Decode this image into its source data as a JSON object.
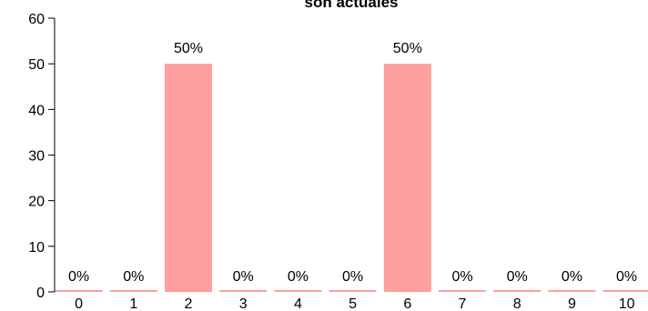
{
  "chart_data": {
    "type": "bar",
    "title": "son actuales",
    "xlabel": "",
    "ylabel": "",
    "categories": [
      "0",
      "1",
      "2",
      "3",
      "4",
      "5",
      "6",
      "7",
      "8",
      "9",
      "10"
    ],
    "values": [
      0,
      0,
      50,
      0,
      0,
      0,
      50,
      0,
      0,
      0,
      0
    ],
    "data_labels": [
      "0%",
      "0%",
      "50%",
      "0%",
      "0%",
      "0%",
      "50%",
      "0%",
      "0%",
      "0%",
      "0%"
    ],
    "ylim": [
      0,
      60
    ],
    "yticks": [
      "0",
      "10",
      "20",
      "30",
      "40",
      "50",
      "60"
    ],
    "grid": false,
    "bar_color": "#ff9e9e"
  }
}
